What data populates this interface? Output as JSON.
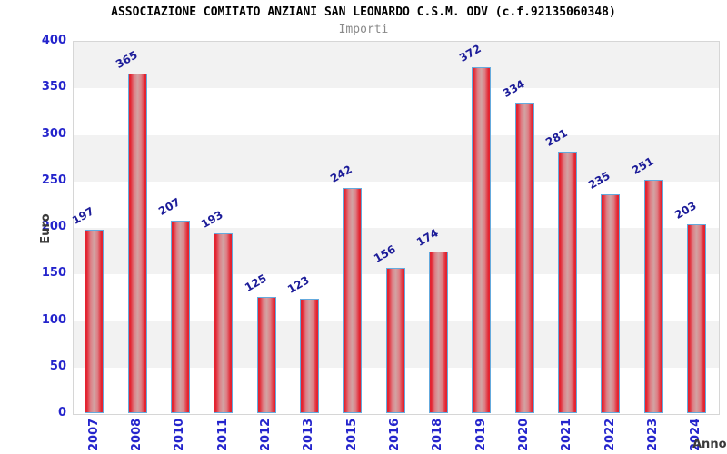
{
  "chart_data": {
    "type": "bar",
    "title": "ASSOCIAZIONE COMITATO ANZIANI SAN LEONARDO C.S.M. ODV (c.f.92135060348)",
    "subtitle": "Importi",
    "xlabel": "Anno",
    "ylabel": "Euro",
    "categories": [
      "2007",
      "2008",
      "2010",
      "2011",
      "2012",
      "2013",
      "2015",
      "2016",
      "2018",
      "2019",
      "2020",
      "2021",
      "2022",
      "2023",
      "2024"
    ],
    "values": [
      197,
      365,
      207,
      193,
      125,
      123,
      242,
      156,
      174,
      372,
      334,
      281,
      235,
      251,
      203
    ],
    "ylim": [
      0,
      400
    ],
    "ytick_step": 50,
    "grid": "alternating-horizontal-bands",
    "legend_position": "none",
    "colors": {
      "tick_label": "#2424cc",
      "value_label": "#1c1c99",
      "axis_title": "#3a3a3a",
      "title": "#000000",
      "subtitle": "#8a8a8a",
      "bar_border": "#64aadd",
      "bar_edge_fill": "#e32330",
      "bar_mid_fill": "#dd8086",
      "bar_center_fill": "#d2a3a3",
      "band_gray": "#f2f2f2",
      "band_white": "#ffffff",
      "plot_border": "#d6d6d6"
    }
  }
}
